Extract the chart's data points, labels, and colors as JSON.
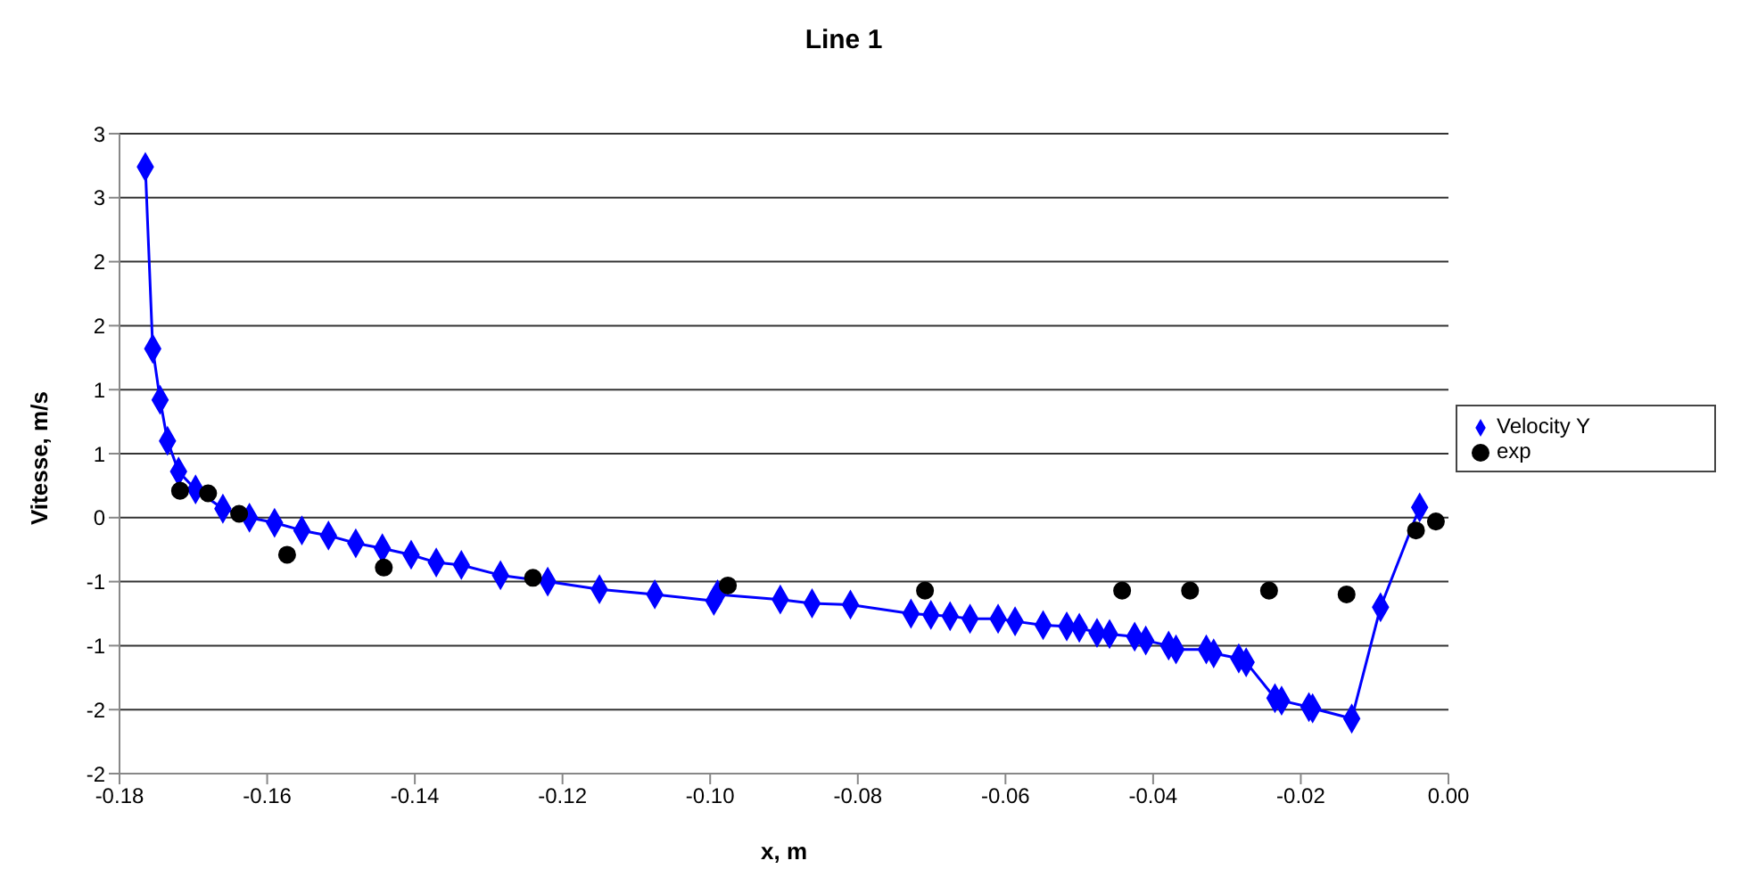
{
  "chart_data": {
    "type": "line",
    "title": "Line 1",
    "xlabel": "x, m",
    "ylabel": "Vitesse, m/s",
    "xlim": [
      -0.18,
      0
    ],
    "ylim": [
      -2,
      3
    ],
    "xticks": [
      {
        "value": -0.18,
        "label": "-0.18"
      },
      {
        "value": -0.16,
        "label": "-0.16"
      },
      {
        "value": -0.14,
        "label": "-0.14"
      },
      {
        "value": -0.12,
        "label": "-0.12"
      },
      {
        "value": -0.1,
        "label": "-0.10"
      },
      {
        "value": -0.08,
        "label": "-0.08"
      },
      {
        "value": -0.06,
        "label": "-0.06"
      },
      {
        "value": -0.04,
        "label": "-0.04"
      },
      {
        "value": -0.02,
        "label": "-0.02"
      },
      {
        "value": 0,
        "label": "0.00"
      }
    ],
    "yticks": [
      -2,
      {
        "value": -1.5,
        "label": "-2"
      },
      -1,
      {
        "value": -0.5,
        "label": "-1"
      },
      0,
      {
        "value": 0.5,
        "label": "1"
      },
      1,
      {
        "value": 1.5,
        "label": "2"
      },
      2,
      {
        "value": 2.5,
        "label": "3"
      },
      3
    ],
    "grid": "y",
    "legend": "right",
    "series": [
      {
        "name": "Velocity Y",
        "type": "line",
        "marker": "diamond",
        "color": "#0000ff",
        "x": [
          -0.1765,
          -0.1755,
          -0.1745,
          -0.1735,
          -0.172,
          -0.1697,
          -0.166,
          -0.1624,
          -0.159,
          -0.1553,
          -0.1517,
          -0.148,
          -0.1444,
          -0.1405,
          -0.1371,
          -0.1337,
          -0.1284,
          -0.122,
          -0.115,
          -0.1075,
          -0.0995,
          -0.099,
          -0.0905,
          -0.0862,
          -0.081,
          -0.0728,
          -0.0701,
          -0.0675,
          -0.0648,
          -0.061,
          -0.0587,
          -0.0549,
          -0.0517,
          -0.05,
          -0.0476,
          -0.0459,
          -0.0425,
          -0.041,
          -0.0379,
          -0.0369,
          -0.0328,
          -0.0318,
          -0.0284,
          -0.0274,
          -0.0235,
          -0.0226,
          -0.0189,
          -0.0184,
          -0.0131,
          -0.0092,
          -0.0039
        ],
        "values": [
          2.74,
          1.32,
          0.92,
          0.6,
          0.36,
          0.22,
          0.07,
          0.0,
          -0.04,
          -0.1,
          -0.14,
          -0.2,
          -0.24,
          -0.29,
          -0.35,
          -0.37,
          -0.45,
          -0.5,
          -0.56,
          -0.6,
          -0.65,
          -0.6,
          -0.64,
          -0.67,
          -0.68,
          -0.75,
          -0.76,
          -0.77,
          -0.79,
          -0.79,
          -0.81,
          -0.84,
          -0.85,
          -0.86,
          -0.9,
          -0.91,
          -0.93,
          -0.96,
          -1.0,
          -1.03,
          -1.03,
          -1.06,
          -1.1,
          -1.13,
          -1.41,
          -1.43,
          -1.48,
          -1.49,
          -1.57,
          -0.7,
          0.08
        ]
      },
      {
        "name": "exp",
        "type": "scatter",
        "marker": "circle",
        "color": "#000000",
        "x": [
          -0.1718,
          -0.168,
          -0.1638,
          -0.1573,
          -0.1442,
          -0.124,
          -0.0976,
          -0.0709,
          -0.0442,
          -0.035,
          -0.0243,
          -0.0138,
          -0.0044,
          -0.0017
        ],
        "values": [
          0.21,
          0.19,
          0.03,
          -0.29,
          -0.39,
          -0.47,
          -0.53,
          -0.57,
          -0.57,
          -0.57,
          -0.57,
          -0.6,
          -0.1,
          -0.03
        ]
      }
    ]
  }
}
